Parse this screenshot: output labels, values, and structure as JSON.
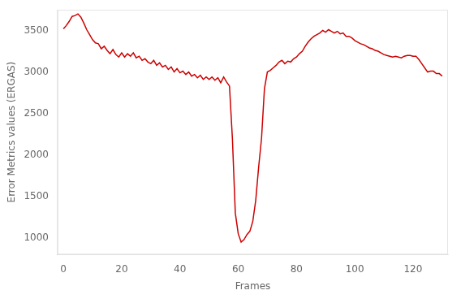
{
  "chart_data": {
    "type": "line",
    "xlabel": "Frames",
    "ylabel": "Error Metrics values (ERGAS)",
    "color": "#cc0000",
    "grid": false,
    "xlim": [
      -2,
      132
    ],
    "ylim": [
      800,
      3750
    ],
    "xticks": [
      0,
      20,
      40,
      60,
      80,
      100,
      120
    ],
    "yticks": [
      1000,
      1500,
      2000,
      2500,
      3000,
      3500
    ],
    "x": [
      0,
      1,
      2,
      3,
      4,
      5,
      6,
      7,
      8,
      9,
      10,
      11,
      12,
      13,
      14,
      15,
      16,
      17,
      18,
      19,
      20,
      21,
      22,
      23,
      24,
      25,
      26,
      27,
      28,
      29,
      30,
      31,
      32,
      33,
      34,
      35,
      36,
      37,
      38,
      39,
      40,
      41,
      42,
      43,
      44,
      45,
      46,
      47,
      48,
      49,
      50,
      51,
      52,
      53,
      54,
      55,
      56,
      57,
      58,
      59,
      60,
      61,
      62,
      63,
      64,
      65,
      66,
      67,
      68,
      69,
      70,
      71,
      72,
      73,
      74,
      75,
      76,
      77,
      78,
      79,
      80,
      81,
      82,
      83,
      84,
      85,
      86,
      87,
      88,
      89,
      90,
      91,
      92,
      93,
      94,
      95,
      96,
      97,
      98,
      99,
      100,
      101,
      102,
      103,
      104,
      105,
      106,
      107,
      108,
      109,
      110,
      111,
      112,
      113,
      114,
      115,
      116,
      117,
      118,
      119,
      120,
      121,
      122,
      123,
      124,
      125,
      126,
      127,
      128,
      129,
      130
    ],
    "values": [
      3520,
      3560,
      3610,
      3670,
      3680,
      3700,
      3660,
      3590,
      3510,
      3450,
      3390,
      3350,
      3340,
      3280,
      3310,
      3260,
      3220,
      3270,
      3210,
      3180,
      3230,
      3180,
      3220,
      3190,
      3230,
      3170,
      3190,
      3140,
      3160,
      3120,
      3100,
      3140,
      3080,
      3110,
      3060,
      3080,
      3030,
      3060,
      3000,
      3040,
      2990,
      3010,
      2970,
      3000,
      2950,
      2970,
      2930,
      2960,
      2910,
      2940,
      2910,
      2940,
      2900,
      2930,
      2870,
      2940,
      2880,
      2830,
      2200,
      1300,
      1050,
      950,
      980,
      1040,
      1080,
      1200,
      1450,
      1850,
      2200,
      2800,
      3000,
      3020,
      3050,
      3080,
      3120,
      3140,
      3100,
      3130,
      3120,
      3160,
      3180,
      3220,
      3250,
      3310,
      3360,
      3400,
      3430,
      3450,
      3470,
      3500,
      3480,
      3510,
      3490,
      3470,
      3490,
      3460,
      3470,
      3430,
      3430,
      3410,
      3380,
      3360,
      3340,
      3330,
      3310,
      3290,
      3280,
      3260,
      3250,
      3230,
      3210,
      3200,
      3190,
      3180,
      3190,
      3180,
      3170,
      3190,
      3200,
      3200,
      3190,
      3190,
      3150,
      3100,
      3050,
      3000,
      3010,
      3010,
      2980,
      2980,
      2950
    ]
  }
}
